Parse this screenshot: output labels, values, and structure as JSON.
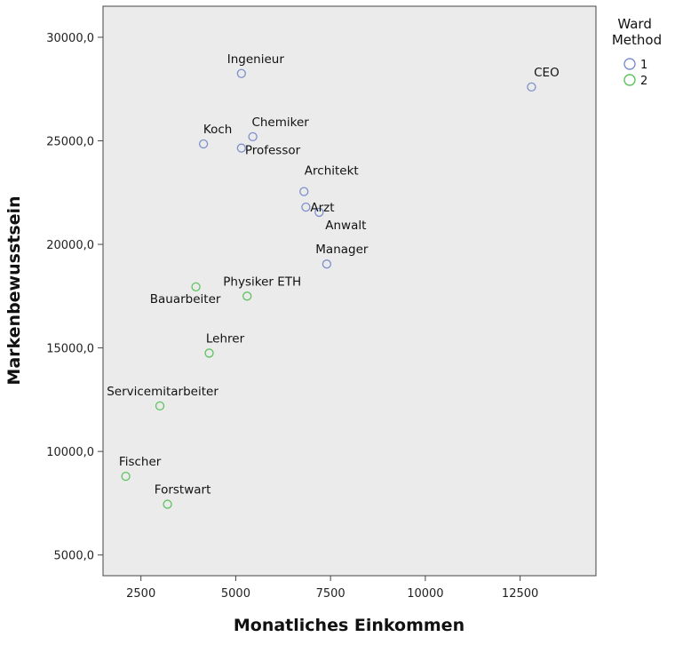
{
  "chart_data": {
    "type": "scatter",
    "title": "",
    "xlabel": "Monatliches Einkommen",
    "ylabel": "Markenbewusstsein",
    "xlim": [
      1500,
      14500
    ],
    "ylim": [
      4000,
      31500
    ],
    "x_ticks": [
      2500,
      5000,
      7500,
      10000,
      12500
    ],
    "y_ticks": [
      5000,
      10000,
      15000,
      20000,
      25000,
      30000
    ],
    "x_tick_labels": [
      "2500",
      "5000",
      "7500",
      "10000",
      "12500"
    ],
    "y_tick_labels": [
      "5000,0",
      "10000,0",
      "15000,0",
      "20000,0",
      "25000,0",
      "30000,0"
    ],
    "grid": false,
    "legend": {
      "title": "Ward Method",
      "placement": "right",
      "entries": [
        {
          "label": "1",
          "color": "#7d8fcc"
        },
        {
          "label": "2",
          "color": "#5ec35e"
        }
      ]
    },
    "plot_background": "#ebebeb",
    "points": [
      {
        "label": "Ingenieur",
        "x": 5150,
        "y": 28250,
        "cluster": "1"
      },
      {
        "label": "CEO",
        "x": 12800,
        "y": 27600,
        "cluster": "1"
      },
      {
        "label": "Koch",
        "x": 4150,
        "y": 24850,
        "cluster": "1"
      },
      {
        "label": "Chemiker",
        "x": 5450,
        "y": 25200,
        "cluster": "1"
      },
      {
        "label": "Professor",
        "x": 5150,
        "y": 24650,
        "cluster": "1"
      },
      {
        "label": "Architekt",
        "x": 6800,
        "y": 22550,
        "cluster": "1"
      },
      {
        "label": "Arzt",
        "x": 6850,
        "y": 21800,
        "cluster": "1"
      },
      {
        "label": "Anwalt",
        "x": 7200,
        "y": 21550,
        "cluster": "1"
      },
      {
        "label": "Manager",
        "x": 7400,
        "y": 19050,
        "cluster": "1"
      },
      {
        "label": "Bauarbeiter",
        "x": 3950,
        "y": 17950,
        "cluster": "2"
      },
      {
        "label": "Physiker ETH",
        "x": 5300,
        "y": 17500,
        "cluster": "2"
      },
      {
        "label": "Lehrer",
        "x": 4300,
        "y": 14750,
        "cluster": "2"
      },
      {
        "label": "Servicemitarbeiter",
        "x": 3000,
        "y": 12200,
        "cluster": "2"
      },
      {
        "label": "Fischer",
        "x": 2100,
        "y": 8800,
        "cluster": "2"
      },
      {
        "label": "Forstwart",
        "x": 3200,
        "y": 7450,
        "cluster": "2"
      }
    ]
  }
}
